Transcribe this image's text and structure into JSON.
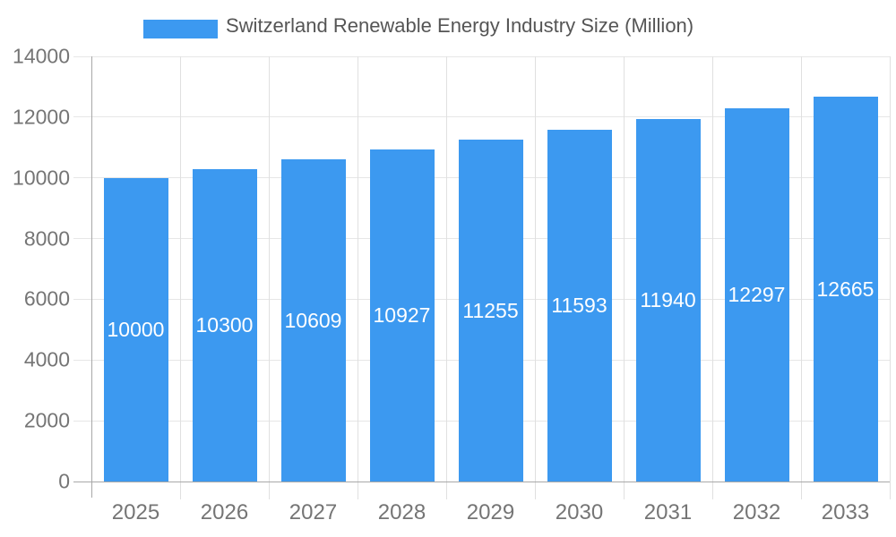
{
  "chart_data": {
    "type": "bar",
    "title": "Switzerland Renewable Energy Industry Size (Million)",
    "categories": [
      "2025",
      "2026",
      "2027",
      "2028",
      "2029",
      "2030",
      "2031",
      "2032",
      "2033"
    ],
    "values": [
      10000,
      10300,
      10609,
      10927,
      11255,
      11593,
      11940,
      12297,
      12665
    ],
    "value_labels": [
      "10000",
      "10300",
      "10609",
      "10927",
      "11255",
      "11593",
      "11940",
      "12297",
      "12665"
    ],
    "xlabel": "",
    "ylabel": "",
    "ylim": [
      0,
      14000
    ],
    "ytick_interval": 2000,
    "yticks": [
      "0",
      "2000",
      "4000",
      "6000",
      "8000",
      "10000",
      "12000",
      "14000"
    ],
    "grid": true,
    "legend_position": "top-center",
    "value_label_position": "inside-center",
    "colors": {
      "bar": "#3c99f0",
      "value_label": "#ffffff",
      "axis_text": "#757575",
      "legend_text": "#555555",
      "gridline": "#e6e6e6",
      "boundary_line": "#e0e0e0",
      "axis_line": "#a8a8a8",
      "background": "#ffffff"
    }
  }
}
